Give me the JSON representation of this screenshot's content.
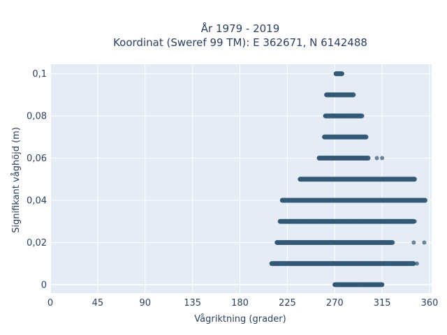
{
  "chart_data": {
    "type": "scatter",
    "title_line1": "År 1979 - 2019",
    "title_line2": "Koordinat (Sweref 99 TM): E 362671, N 6142488",
    "xlabel": "Vågriktning (grader)",
    "ylabel": "Signifikant våghöjd (m)",
    "xlim": [
      0,
      362
    ],
    "ylim": [
      -0.004,
      0.1045
    ],
    "x_ticks": [
      0,
      45,
      90,
      135,
      180,
      225,
      270,
      315,
      360
    ],
    "y_ticks": [
      0,
      0.02,
      0.04,
      0.06,
      0.08,
      0.1
    ],
    "y_tick_labels": [
      "0",
      "0,02",
      "0,04",
      "0,06",
      "0,08",
      "0,1"
    ],
    "grid": true,
    "point_color": "#2f5673",
    "background_color": "#e5ecf6",
    "bands": [
      {
        "y": 0.0,
        "segments": [
          [
            270,
            315
          ]
        ],
        "outliers": [
          270,
          276,
          279,
          283,
          288,
          298,
          306,
          310,
          315
        ]
      },
      {
        "y": 0.01,
        "segments": [
          [
            210,
            345
          ]
        ],
        "outliers": [
          348
        ]
      },
      {
        "y": 0.02,
        "segments": [
          [
            215,
            325
          ]
        ],
        "outliers": [
          345,
          355
        ]
      },
      {
        "y": 0.03,
        "segments": [
          [
            218,
            345
          ]
        ],
        "outliers": [
          346
        ]
      },
      {
        "y": 0.04,
        "segments": [
          [
            220,
            356
          ]
        ],
        "outliers": []
      },
      {
        "y": 0.05,
        "segments": [
          [
            237,
            346
          ]
        ],
        "outliers": []
      },
      {
        "y": 0.06,
        "segments": [
          [
            255,
            302
          ]
        ],
        "outliers": [
          310,
          315
        ]
      },
      {
        "y": 0.07,
        "segments": [
          [
            260,
            300
          ]
        ],
        "outliers": []
      },
      {
        "y": 0.08,
        "segments": [
          [
            261,
            296
          ]
        ],
        "outliers": []
      },
      {
        "y": 0.09,
        "segments": [
          [
            262,
            288
          ]
        ],
        "outliers": []
      },
      {
        "y": 0.1,
        "segments": [
          [
            271,
            277
          ]
        ],
        "outliers": []
      }
    ]
  }
}
